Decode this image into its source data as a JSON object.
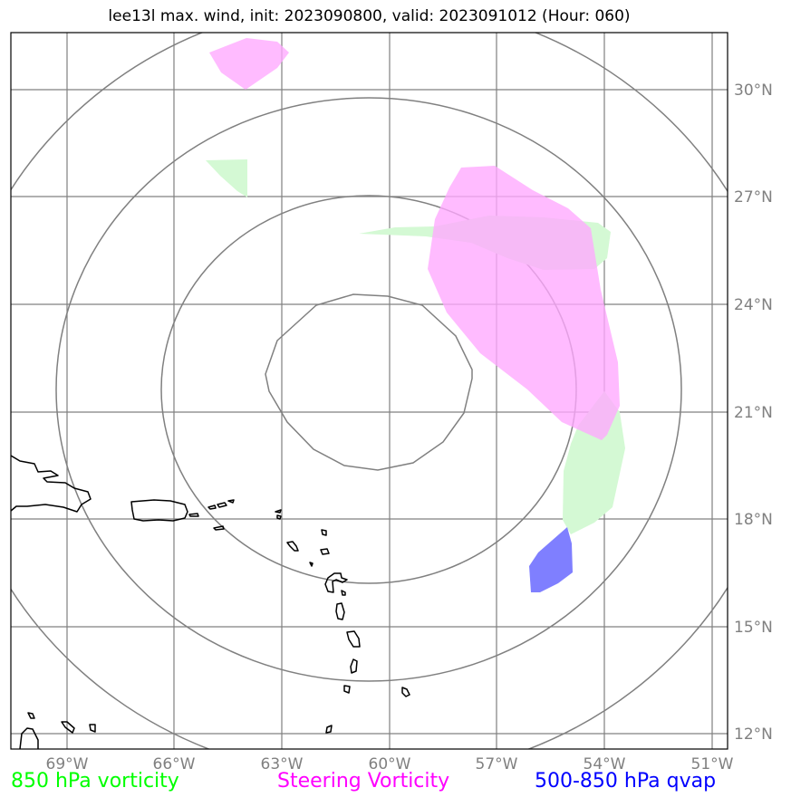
{
  "title": "lee13l max. wind, init: 2023090800, valid: 2023091012 (Hour: 060)",
  "map": {
    "lon_range": [
      -70.2,
      -50.5
    ],
    "lat_range": [
      11.6,
      32.1
    ],
    "longitude_labels": [
      "69°W",
      "66°W",
      "63°W",
      "60°W",
      "57°W",
      "54°W",
      "51°W"
    ],
    "latitude_labels": [
      "30°N",
      "27°N",
      "24°N",
      "21°N",
      "18°N",
      "15°N",
      "12°N"
    ],
    "gridline_color": "#808080",
    "range_ring_color": "#808080",
    "coastline_color": "#000000"
  },
  "legend": {
    "vorticity_850": {
      "label": "850 hPa vorticity",
      "color": "#00ff00"
    },
    "steering_vorticity": {
      "label": "Steering Vorticity",
      "color": "#ff00ff"
    },
    "qvap_500_850": {
      "label": "500-850 hPa qvap",
      "color": "#0000ff"
    }
  },
  "fields": {
    "vorticity_850_fill": "#d4f9d4",
    "steering_vorticity_fill": "#ffa8ff",
    "qvap_fill": "#7f7fff"
  }
}
